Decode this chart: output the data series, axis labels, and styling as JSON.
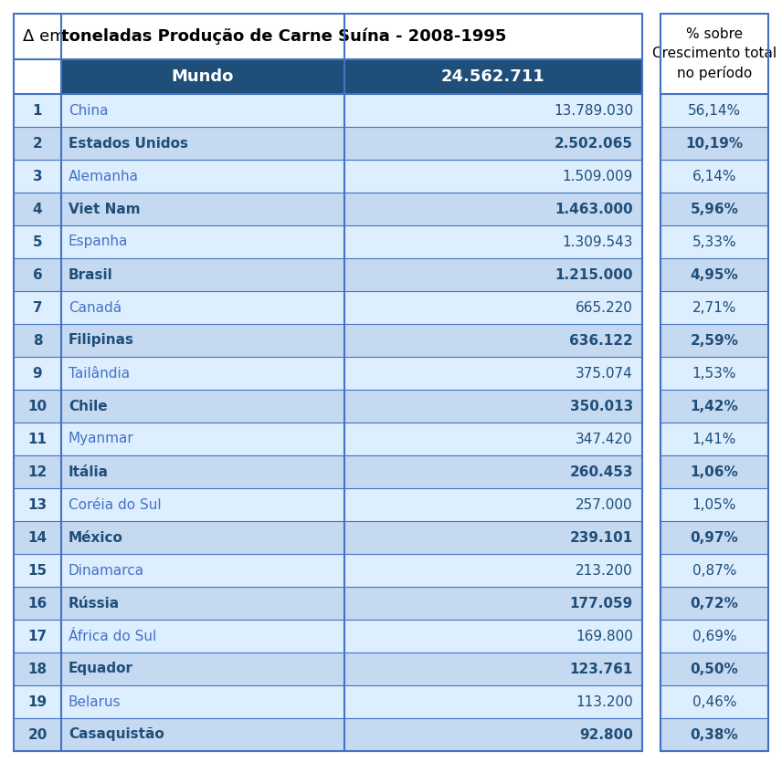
{
  "title_normal": "Δ em ",
  "title_bold": "toneladas Produção de Carne Suína - 2008-1995",
  "header_world": "Mundo",
  "header_world_value": "24.562.711",
  "header_pct": "% sobre\nCrescimento total\nno período",
  "rows": [
    {
      "rank": "1",
      "country": "China",
      "value": "13.789.030",
      "pct": "56,14%",
      "bold": false
    },
    {
      "rank": "2",
      "country": "Estados Unidos",
      "value": "2.502.065",
      "pct": "10,19%",
      "bold": true
    },
    {
      "rank": "3",
      "country": "Alemanha",
      "value": "1.509.009",
      "pct": "6,14%",
      "bold": false
    },
    {
      "rank": "4",
      "country": "Viet Nam",
      "value": "1.463.000",
      "pct": "5,96%",
      "bold": true
    },
    {
      "rank": "5",
      "country": "Espanha",
      "value": "1.309.543",
      "pct": "5,33%",
      "bold": false
    },
    {
      "rank": "6",
      "country": "Brasil",
      "value": "1.215.000",
      "pct": "4,95%",
      "bold": true
    },
    {
      "rank": "7",
      "country": "Canadá",
      "value": "665.220",
      "pct": "2,71%",
      "bold": false
    },
    {
      "rank": "8",
      "country": "Filipinas",
      "value": "636.122",
      "pct": "2,59%",
      "bold": true
    },
    {
      "rank": "9",
      "country": "Tailândia",
      "value": "375.074",
      "pct": "1,53%",
      "bold": false
    },
    {
      "rank": "10",
      "country": "Chile",
      "value": "350.013",
      "pct": "1,42%",
      "bold": true
    },
    {
      "rank": "11",
      "country": "Myanmar",
      "value": "347.420",
      "pct": "1,41%",
      "bold": false
    },
    {
      "rank": "12",
      "country": "Itália",
      "value": "260.453",
      "pct": "1,06%",
      "bold": true
    },
    {
      "rank": "13",
      "country": "Coréia do Sul",
      "value": "257.000",
      "pct": "1,05%",
      "bold": false
    },
    {
      "rank": "14",
      "country": "México",
      "value": "239.101",
      "pct": "0,97%",
      "bold": true
    },
    {
      "rank": "15",
      "country": "Dinamarca",
      "value": "213.200",
      "pct": "0,87%",
      "bold": false
    },
    {
      "rank": "16",
      "country": "Rússia",
      "value": "177.059",
      "pct": "0,72%",
      "bold": true
    },
    {
      "rank": "17",
      "country": "África do Sul",
      "value": "169.800",
      "pct": "0,69%",
      "bold": false
    },
    {
      "rank": "18",
      "country": "Equador",
      "value": "123.761",
      "pct": "0,50%",
      "bold": true
    },
    {
      "rank": "19",
      "country": "Belarus",
      "value": "113.200",
      "pct": "0,46%",
      "bold": false
    },
    {
      "rank": "20",
      "country": "Casaquistão",
      "value": "92.800",
      "pct": "0,38%",
      "bold": true
    }
  ],
  "colors": {
    "header_bg": "#1F4E79",
    "header_text": "#FFFFFF",
    "row_odd": "#DDEEFF",
    "row_even": "#C5D9F1",
    "border": "#4472C4",
    "dark_blue": "#1F4E79",
    "mid_blue": "#4472C4",
    "white": "#FFFFFF"
  },
  "figsize": [
    8.56,
    8.35
  ],
  "dpi": 100
}
